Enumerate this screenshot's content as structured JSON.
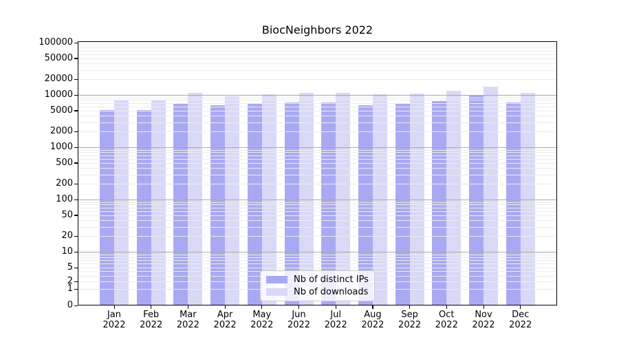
{
  "chart": {
    "title": "BiocNeighbors 2022",
    "y_axis": {
      "ticks": [
        {
          "label": "100000",
          "value": 100000
        },
        {
          "label": "50000",
          "value": 50000
        },
        {
          "label": "20000",
          "value": 20000
        },
        {
          "label": "10000",
          "value": 10000
        },
        {
          "label": "5000",
          "value": 5000
        },
        {
          "label": "2000",
          "value": 2000
        },
        {
          "label": "1000",
          "value": 1000
        },
        {
          "label": "500",
          "value": 500
        },
        {
          "label": "200",
          "value": 200
        },
        {
          "label": "100",
          "value": 100
        },
        {
          "label": "50",
          "value": 50
        },
        {
          "label": "20",
          "value": 20
        },
        {
          "label": "10",
          "value": 10
        },
        {
          "label": "5",
          "value": 5
        },
        {
          "label": "2",
          "value": 2
        },
        {
          "label": "1",
          "value": 1
        },
        {
          "label": "0",
          "value": 0
        }
      ]
    },
    "x_axis": {
      "categories": [
        {
          "month": "Jan",
          "year": "2022"
        },
        {
          "month": "Feb",
          "year": "2022"
        },
        {
          "month": "Mar",
          "year": "2022"
        },
        {
          "month": "Apr",
          "year": "2022"
        },
        {
          "month": "May",
          "year": "2022"
        },
        {
          "month": "Jun",
          "year": "2022"
        },
        {
          "month": "Jul",
          "year": "2022"
        },
        {
          "month": "Aug",
          "year": "2022"
        },
        {
          "month": "Sep",
          "year": "2022"
        },
        {
          "month": "Oct",
          "year": "2022"
        },
        {
          "month": "Nov",
          "year": "2022"
        },
        {
          "month": "Dec",
          "year": "2022"
        }
      ]
    }
  },
  "chart_data": {
    "type": "bar",
    "title": "BiocNeighbors 2022",
    "categories": [
      "Jan 2022",
      "Feb 2022",
      "Mar 2022",
      "Apr 2022",
      "May 2022",
      "Jun 2022",
      "Jul 2022",
      "Aug 2022",
      "Sep 2022",
      "Oct 2022",
      "Nov 2022",
      "Dec 2022"
    ],
    "series": [
      {
        "name": "Nb of distinct IPs",
        "color": "#a9a9f3",
        "values": [
          5100,
          5100,
          7000,
          6300,
          6900,
          7100,
          7100,
          6300,
          6900,
          7700,
          9900,
          7100
        ]
      },
      {
        "name": "Nb of downloads",
        "color": "#d9d9f7",
        "values": [
          8100,
          8200,
          10900,
          9300,
          10200,
          11000,
          11000,
          10200,
          10500,
          11900,
          14500,
          11000
        ]
      }
    ],
    "xlabel": "",
    "ylabel": "",
    "yscale": "symlog",
    "ylim": [
      0,
      100000
    ],
    "ytick_values": [
      100000,
      50000,
      20000,
      10000,
      5000,
      2000,
      1000,
      500,
      200,
      100,
      50,
      20,
      10,
      5,
      2,
      1,
      0
    ],
    "grid": "on",
    "legend_position": "lower center"
  }
}
